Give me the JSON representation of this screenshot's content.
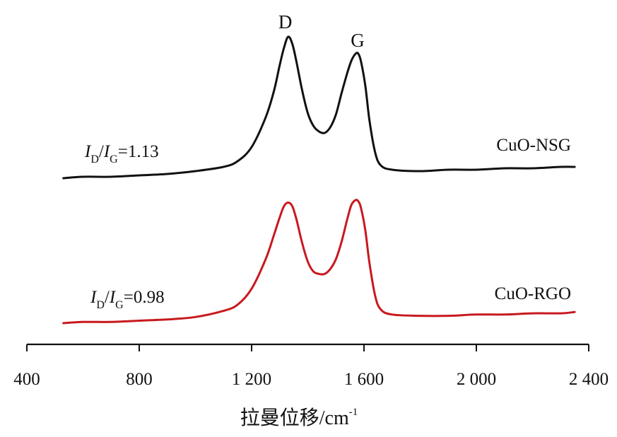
{
  "chart_data": {
    "type": "line",
    "xlabel": "拉曼位移/cm",
    "xlabel_superscript": "-1",
    "xlim": [
      400,
      2400
    ],
    "x_ticks": [
      400,
      800,
      1200,
      1600,
      2000,
      2400
    ],
    "x_tick_labels": [
      "400",
      "800",
      "1 200",
      "1 600",
      "2 000",
      "2 400"
    ],
    "y_axis": "none",
    "grid": false,
    "legend": "none",
    "peak_labels": {
      "D": {
        "text": "D",
        "x": 1330
      },
      "G": {
        "text": "G",
        "x": 1580
      }
    },
    "series": [
      {
        "name": "CuO-NSG",
        "color": "#111111",
        "ratio": {
          "i": "I",
          "d": "D",
          "slash": "/",
          "g": "G",
          "value": "=1.13"
        },
        "x": [
          530,
          600,
          700,
          800,
          900,
          1000,
          1100,
          1150,
          1200,
          1250,
          1280,
          1300,
          1315,
          1330,
          1345,
          1360,
          1380,
          1400,
          1420,
          1440,
          1460,
          1480,
          1500,
          1520,
          1540,
          1555,
          1570,
          1580,
          1590,
          1605,
          1620,
          1640,
          1660,
          1700,
          1800,
          1900,
          2000,
          2100,
          2200,
          2300,
          2350
        ],
        "y": [
          0.0,
          0.01,
          0.01,
          0.02,
          0.03,
          0.05,
          0.08,
          0.12,
          0.22,
          0.43,
          0.62,
          0.8,
          0.92,
          1.0,
          0.95,
          0.82,
          0.62,
          0.46,
          0.37,
          0.33,
          0.32,
          0.36,
          0.45,
          0.6,
          0.74,
          0.83,
          0.88,
          0.88,
          0.82,
          0.65,
          0.4,
          0.18,
          0.09,
          0.06,
          0.05,
          0.06,
          0.06,
          0.07,
          0.07,
          0.08,
          0.08
        ]
      },
      {
        "name": "CuO-RGO",
        "color": "#c8191e",
        "ratio": {
          "i": "I",
          "d": "D",
          "slash": "/",
          "g": "G",
          "value": "=0.98"
        },
        "x": [
          530,
          600,
          700,
          800,
          900,
          1000,
          1100,
          1150,
          1200,
          1250,
          1280,
          1300,
          1315,
          1330,
          1345,
          1360,
          1380,
          1400,
          1420,
          1440,
          1460,
          1480,
          1500,
          1520,
          1540,
          1555,
          1570,
          1580,
          1590,
          1605,
          1620,
          1640,
          1660,
          1700,
          1800,
          1900,
          2000,
          2100,
          2200,
          2300,
          2350
        ],
        "y": [
          0.0,
          0.01,
          0.01,
          0.02,
          0.03,
          0.05,
          0.1,
          0.15,
          0.28,
          0.52,
          0.72,
          0.86,
          0.95,
          0.98,
          0.95,
          0.84,
          0.65,
          0.5,
          0.42,
          0.4,
          0.4,
          0.44,
          0.52,
          0.66,
          0.84,
          0.96,
          1.0,
          0.99,
          0.93,
          0.75,
          0.48,
          0.22,
          0.11,
          0.07,
          0.06,
          0.06,
          0.07,
          0.07,
          0.08,
          0.08,
          0.09
        ]
      }
    ]
  }
}
